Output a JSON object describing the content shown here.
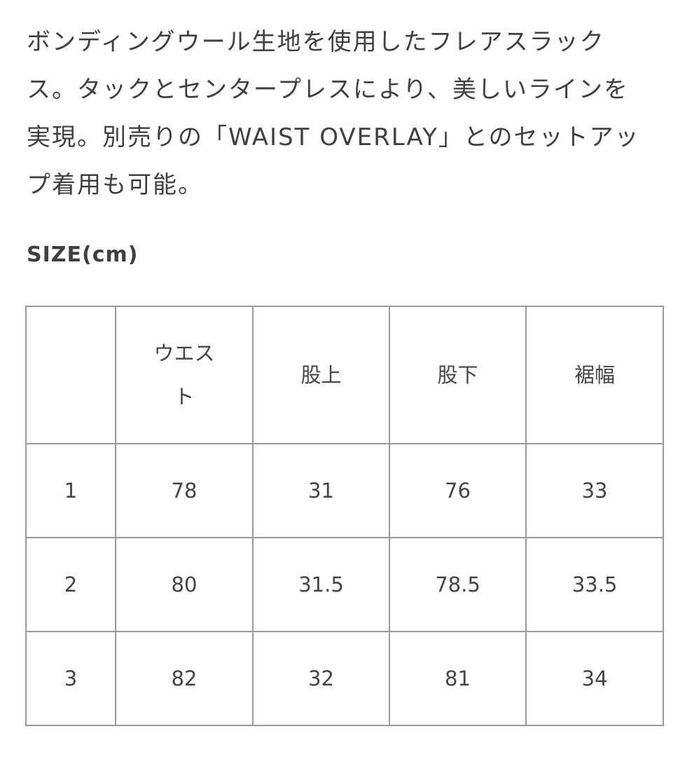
{
  "description": "ボンディングウール生地を使用したフレアスラックス。タックとセンタープレスにより、美しいラインを実現。別売りの「WAIST OVERLAY」とのセットアップ着用も可能。",
  "size_title": "SIZE(cm)",
  "table": {
    "headers": [
      "",
      "ウエスト",
      "股上",
      "股下",
      "裾幅"
    ],
    "rows": [
      [
        "1",
        "78",
        "31",
        "76",
        "33"
      ],
      [
        "2",
        "80",
        "31.5",
        "78.5",
        "33.5"
      ],
      [
        "3",
        "82",
        "32",
        "81",
        "34"
      ]
    ]
  }
}
